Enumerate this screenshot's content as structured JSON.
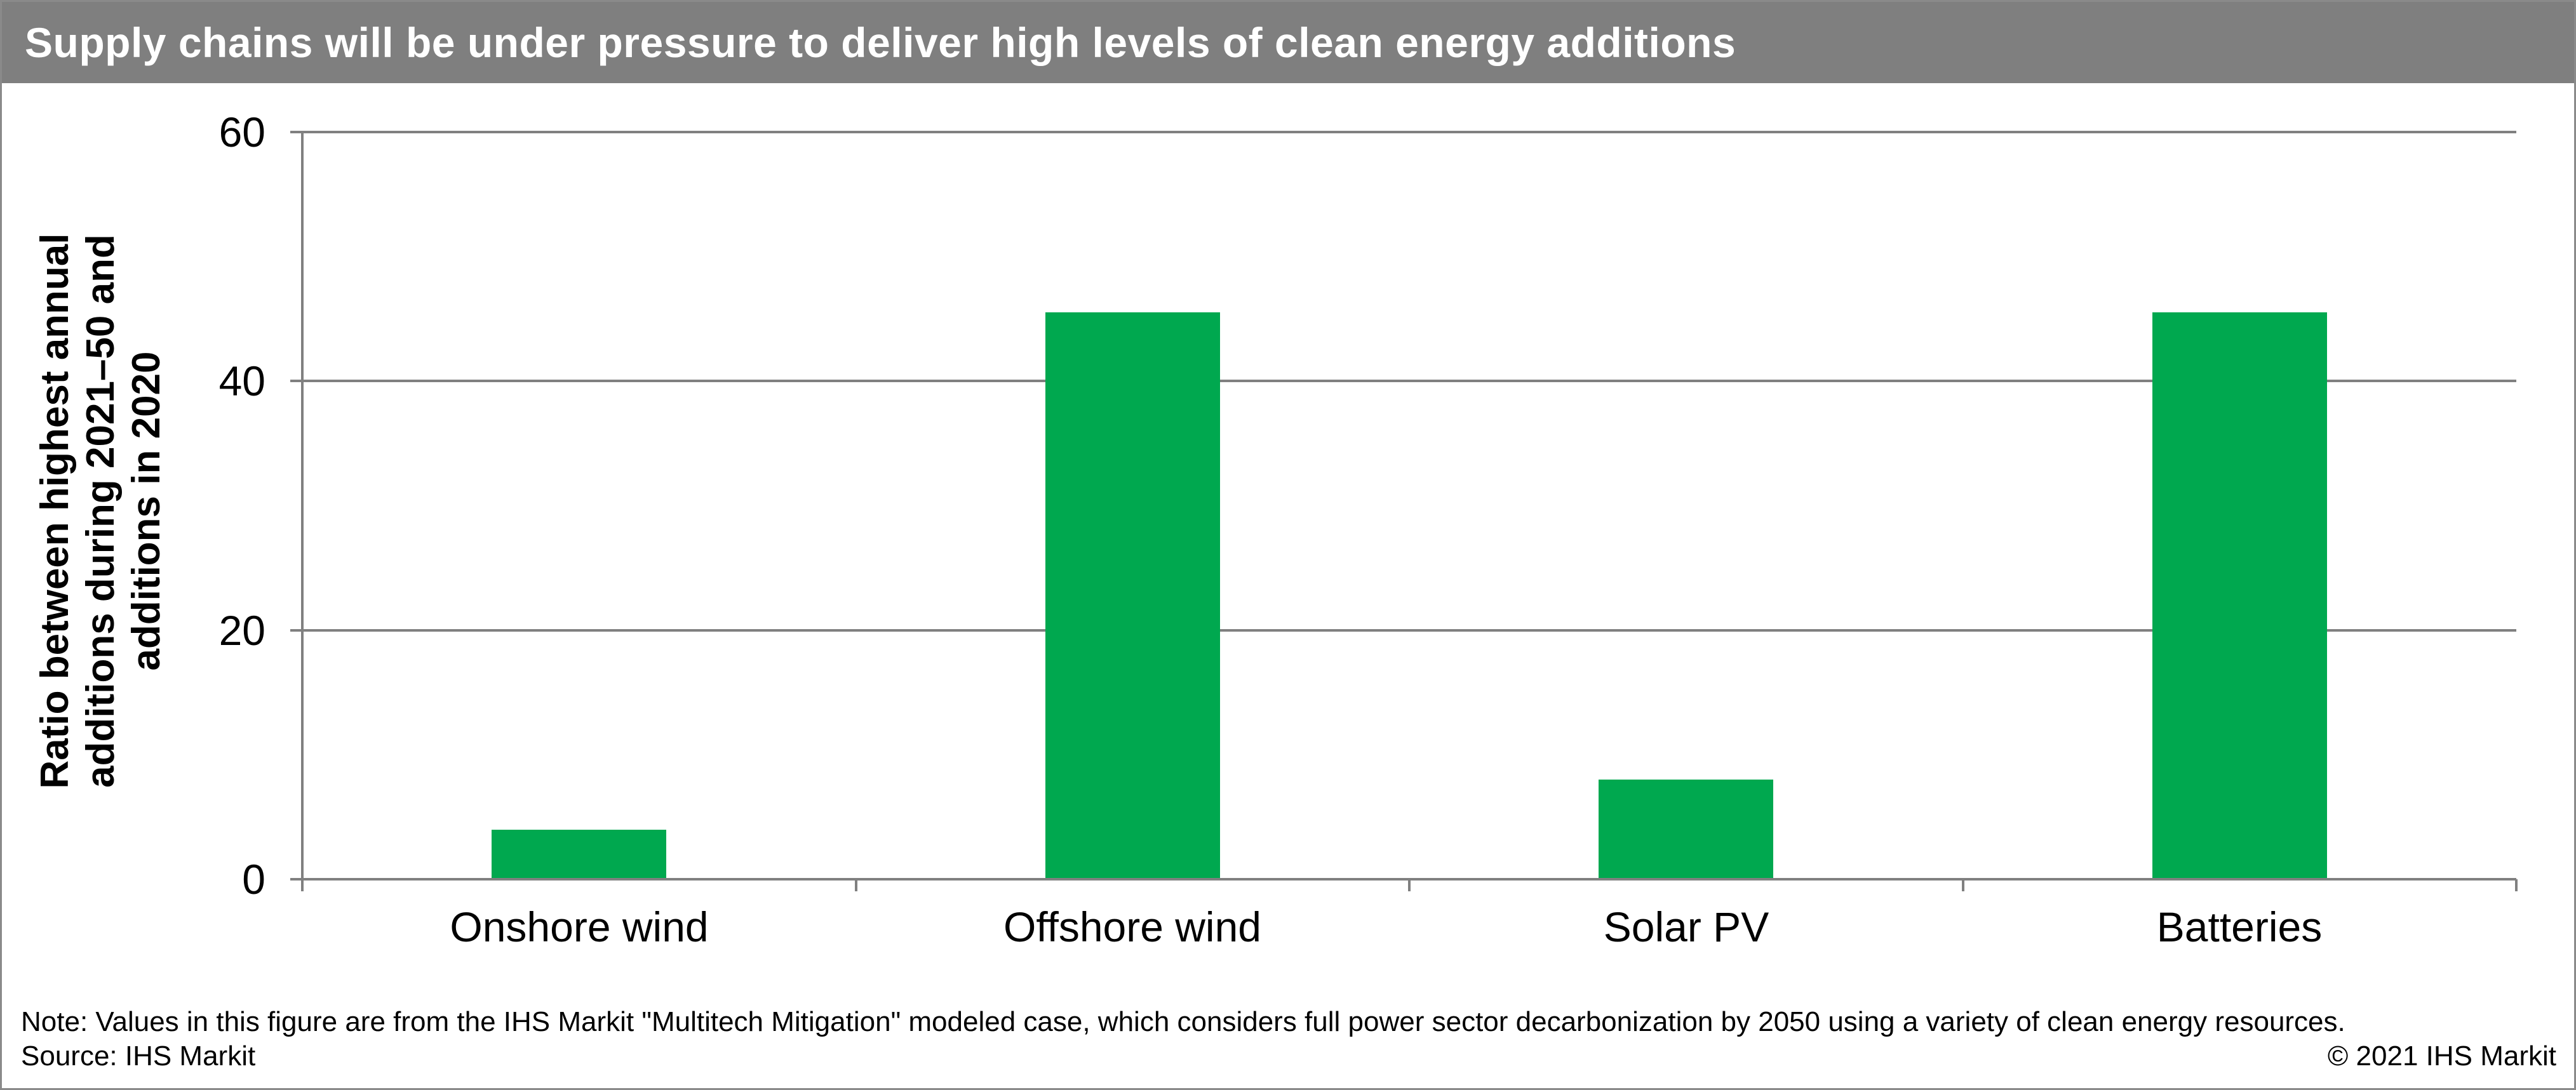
{
  "title_bar": {
    "text": "Supply chains will be under pressure to deliver high levels of clean energy additions",
    "bg_color": "#7F7F7F",
    "text_color": "#FFFFFF"
  },
  "chart_data": {
    "type": "bar",
    "title": "Supply chains will be under pressure to deliver high levels of clean energy additions",
    "categories": [
      "Onshore wind",
      "Offshore wind",
      "Solar PV",
      "Batteries"
    ],
    "values": [
      4,
      45.5,
      8,
      45.5
    ],
    "ylabel": "Ratio between highest annual additions during 2021–50 and additions in 2020",
    "ylabel_lines": [
      "Ratio between highest annual",
      "additions during 2021–50 and",
      "additions in 2020"
    ],
    "yticks": [
      0,
      20,
      40,
      60
    ],
    "ylim": [
      0,
      60
    ],
    "xlabel": "",
    "bar_color": "#00A84F",
    "grid_color": "#808080",
    "grid": "on",
    "legend": "none"
  },
  "footer": {
    "note": "Note: Values in this figure are from the IHS Markit \"Multitech Mitigation\" modeled case, which considers full power sector decarbonization by 2050 using a variety of clean energy resources.",
    "source": "Source: IHS Markit",
    "copyright": "© 2021 IHS Markit"
  }
}
